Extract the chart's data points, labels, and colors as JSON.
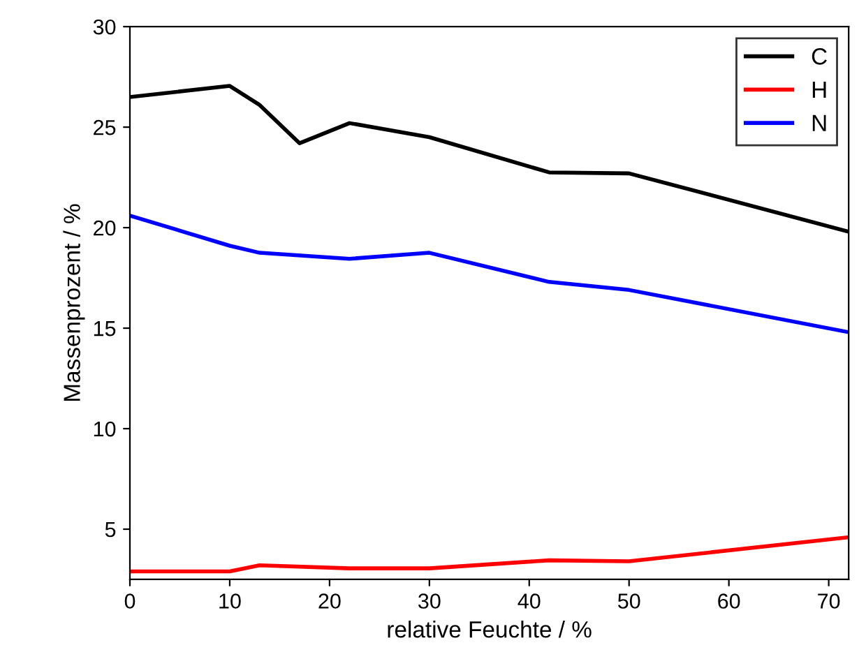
{
  "chart_data": {
    "type": "line",
    "xlabel": "relative Feuchte / %",
    "ylabel": "Massenprozent / %",
    "xlim": [
      0,
      72
    ],
    "ylim": [
      2.5,
      30
    ],
    "xticks": [
      0,
      10,
      20,
      30,
      40,
      50,
      60,
      70
    ],
    "yticks": [
      5,
      10,
      15,
      20,
      25,
      30
    ],
    "legend": "top right",
    "marker": "none",
    "line_style": "solid",
    "grid": false,
    "series": [
      {
        "name": "C",
        "color": "#000000",
        "x": [
          0,
          10,
          13,
          17,
          22,
          30,
          42,
          50,
          72
        ],
        "values": [
          26.5,
          27.05,
          26.1,
          24.2,
          25.2,
          24.5,
          22.75,
          22.7,
          19.8
        ]
      },
      {
        "name": "H",
        "color": "#ff0000",
        "x": [
          0,
          10,
          13,
          22,
          30,
          42,
          50,
          72
        ],
        "values": [
          2.9,
          2.9,
          3.2,
          3.05,
          3.05,
          3.45,
          3.4,
          4.6
        ]
      },
      {
        "name": "N",
        "color": "#0000ff",
        "x": [
          0,
          10,
          13,
          22,
          30,
          42,
          50,
          72
        ],
        "values": [
          20.6,
          19.1,
          18.75,
          18.45,
          18.75,
          17.3,
          16.9,
          14.8
        ]
      }
    ]
  }
}
